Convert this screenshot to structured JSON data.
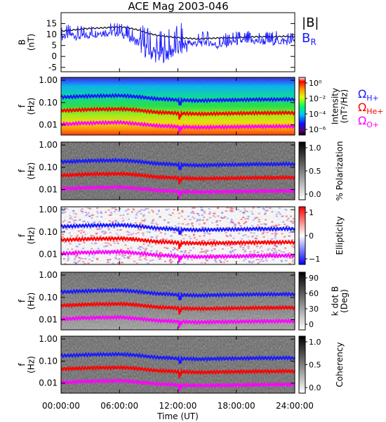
{
  "title": "ACE Mag 2003-046",
  "colors": {
    "B_total": "#000000",
    "B_R": "#1a1aff",
    "omega_H": "#1a1aff",
    "omega_He": "#ff0000",
    "omega_O": "#ff00ff"
  },
  "chart_data": [
    {
      "type": "line",
      "name": "field-panel",
      "ylabel": "B\n(nT)",
      "ylim": [
        -7,
        20
      ],
      "yticks": [
        15,
        10,
        5,
        0,
        -5
      ],
      "xlim": [
        0,
        24
      ],
      "legend": [
        "|B|",
        "BR"
      ],
      "legend_placement": "right",
      "series": [
        {
          "name": "|B|",
          "x": [
            0,
            1,
            2,
            3,
            4,
            5,
            6,
            7,
            8,
            9,
            10,
            11,
            12,
            13,
            14,
            15,
            16,
            17,
            18,
            19,
            20,
            21,
            22,
            23,
            24
          ],
          "values": [
            11.5,
            12,
            12.5,
            12.8,
            13,
            13.2,
            13.5,
            13,
            12,
            10.5,
            9.5,
            9,
            8.6,
            8.3,
            8,
            8.2,
            8.4,
            8.5,
            8.6,
            8.8,
            9,
            9,
            9,
            9.2,
            9
          ]
        },
        {
          "name": "BR",
          "x": [
            0,
            1,
            2,
            3,
            4,
            5,
            6,
            7,
            8,
            9,
            10,
            11,
            12,
            13,
            14,
            15,
            16,
            17,
            18,
            19,
            20,
            21,
            22,
            23,
            24
          ],
          "values": [
            9,
            10,
            9,
            10,
            11,
            11,
            11,
            9,
            6,
            3,
            1,
            2,
            4,
            6,
            6,
            7,
            5,
            6,
            7,
            7,
            7,
            7,
            7,
            7,
            7
          ]
        }
      ]
    },
    {
      "type": "heatmap",
      "name": "intensity-panel",
      "ylabel": "f\n(Hz)",
      "yscale": "log",
      "ylim": [
        0.0035,
        1.35
      ],
      "yticks": [
        "1.00",
        "0.10",
        "0.01"
      ],
      "colorbar": {
        "label": "Intensity\n(nT²/Hz)",
        "ticks": [
          "10⁰",
          "10⁻²",
          "10⁻⁴",
          "10⁻⁶"
        ],
        "scale": "rainbow"
      }
    },
    {
      "type": "heatmap",
      "name": "polarization-panel",
      "ylabel": "f\n(Hz)",
      "yscale": "log",
      "yticks": [
        "1.00",
        "0.10",
        "0.01"
      ],
      "colorbar": {
        "label": "% Polarization",
        "ticks": [
          "1.0",
          "0.5",
          "0.0"
        ],
        "scale": "gray"
      }
    },
    {
      "type": "heatmap",
      "name": "ellipticity-panel",
      "ylabel": "f\n(Hz)",
      "yscale": "log",
      "yticks": [
        "1.00",
        "0.10",
        "0.01"
      ],
      "colorbar": {
        "label": "Ellipticity",
        "ticks": [
          "1",
          "0",
          "−1"
        ],
        "scale": "bwr"
      }
    },
    {
      "type": "heatmap",
      "name": "kdotb-panel",
      "ylabel": "f\n(Hz)",
      "yscale": "log",
      "yticks": [
        "1.00",
        "0.10",
        "0.01"
      ],
      "colorbar": {
        "label": "k dot B\n(Deg)",
        "ticks": [
          "90",
          "60",
          "30",
          "0"
        ],
        "scale": "gray"
      }
    },
    {
      "type": "heatmap",
      "name": "coherency-panel",
      "ylabel": "f\n(Hz)",
      "yscale": "log",
      "yticks": [
        "1.00",
        "0.10",
        "0.01"
      ],
      "xlabel": "Time (UT)",
      "xticks": [
        "00:00:00",
        "06:00:00",
        "12:00:00",
        "18:00:00",
        "24:00:00"
      ],
      "colorbar": {
        "label": "Coherency",
        "ticks": [
          "1.0",
          "0.5",
          "0.0"
        ],
        "scale": "gray"
      }
    }
  ],
  "gyrofrequencies": {
    "x": [
      0,
      1,
      2,
      3,
      4,
      5,
      6,
      7,
      8,
      9,
      10,
      11,
      12,
      13,
      14,
      15,
      16,
      17,
      18,
      19,
      20,
      21,
      22,
      23,
      24
    ],
    "omega_H_hz": [
      0.175,
      0.18,
      0.19,
      0.195,
      0.2,
      0.2,
      0.205,
      0.195,
      0.18,
      0.16,
      0.145,
      0.14,
      0.13,
      0.127,
      0.122,
      0.125,
      0.128,
      0.13,
      0.131,
      0.134,
      0.137,
      0.137,
      0.137,
      0.14,
      0.137
    ],
    "omega_He_hz": [
      0.044,
      0.045,
      0.047,
      0.049,
      0.05,
      0.05,
      0.051,
      0.049,
      0.045,
      0.04,
      0.036,
      0.035,
      0.033,
      0.032,
      0.031,
      0.031,
      0.032,
      0.032,
      0.033,
      0.033,
      0.034,
      0.034,
      0.034,
      0.035,
      0.034
    ],
    "omega_O_hz": [
      0.011,
      0.011,
      0.012,
      0.012,
      0.0125,
      0.0125,
      0.013,
      0.012,
      0.011,
      0.01,
      0.009,
      0.0088,
      0.0082,
      0.008,
      0.0077,
      0.0078,
      0.008,
      0.008,
      0.0082,
      0.0083,
      0.0085,
      0.0085,
      0.0085,
      0.0087,
      0.0085
    ],
    "labels": [
      "ΩH+",
      "ΩHe+",
      "ΩO+"
    ]
  }
}
